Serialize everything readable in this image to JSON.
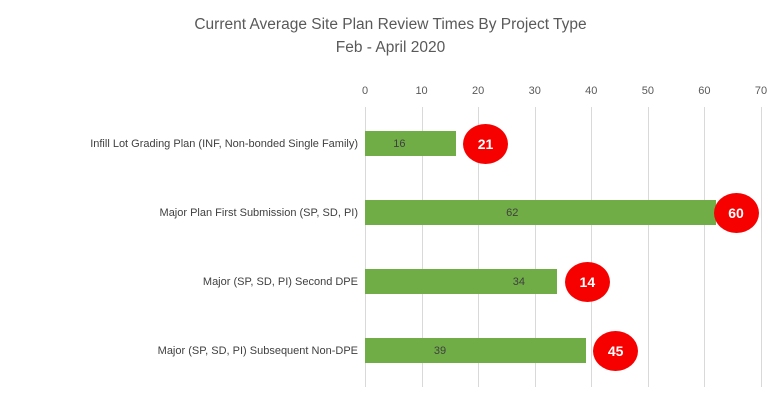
{
  "title": {
    "line1": "Current Average Site Plan Review Times By Project Type",
    "line2": "Feb - April 2020"
  },
  "colors": {
    "bar": "#70AD47",
    "marker": "#F60000",
    "marker_text": "#FFFFFF",
    "gridline": "#D9D9D9",
    "title_text": "#595959",
    "axis_text": "#595959",
    "label_text": "#404040"
  },
  "chart_data": {
    "type": "bar",
    "orientation": "horizontal",
    "title": "Current Average Site Plan Review Times By Project Type",
    "subtitle": "Feb - April 2020",
    "categories": [
      "Infill Lot Grading Plan (INF, Non-bonded Single Family)",
      "Major Plan First Submission (SP, SD, PI)",
      "Major (SP, SD, PI) Second DPE",
      "Major (SP, SD, PI) Subsequent Non-DPE"
    ],
    "series": [
      {
        "name": "average-review-days-bar",
        "style": "green-bar",
        "values": [
          16,
          62,
          34,
          39
        ]
      },
      {
        "name": "red-circle-callout",
        "style": "red-circle",
        "values": [
          21,
          60,
          14,
          45
        ]
      }
    ],
    "xlim": [
      0,
      70
    ],
    "x_ticks": [
      0,
      10,
      20,
      30,
      40,
      50,
      60,
      70
    ],
    "axis_position": "top",
    "grid": true,
    "legend": false
  }
}
